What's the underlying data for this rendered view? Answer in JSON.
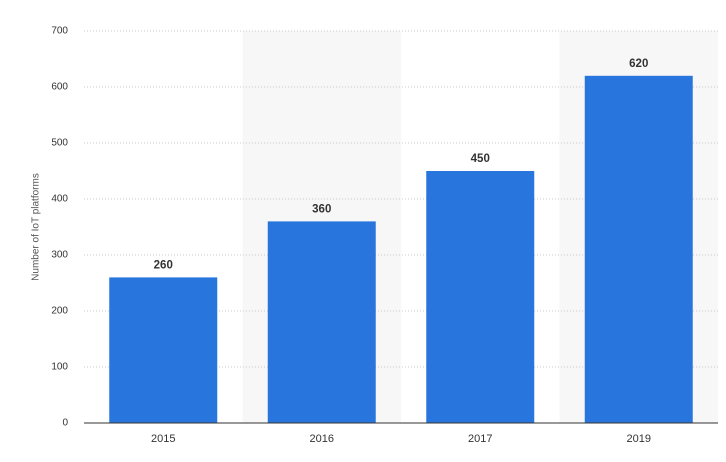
{
  "chart_data": {
    "type": "bar",
    "y_label": "Number of IoT platforms",
    "categories": [
      "2015",
      "2016",
      "2017",
      "2019"
    ],
    "values": [
      260,
      360,
      450,
      620
    ],
    "color": "#2876dd",
    "ylim": [
      0,
      700
    ],
    "yticks": [
      0,
      100,
      200,
      300,
      400,
      500,
      600,
      700
    ],
    "grid": true
  }
}
